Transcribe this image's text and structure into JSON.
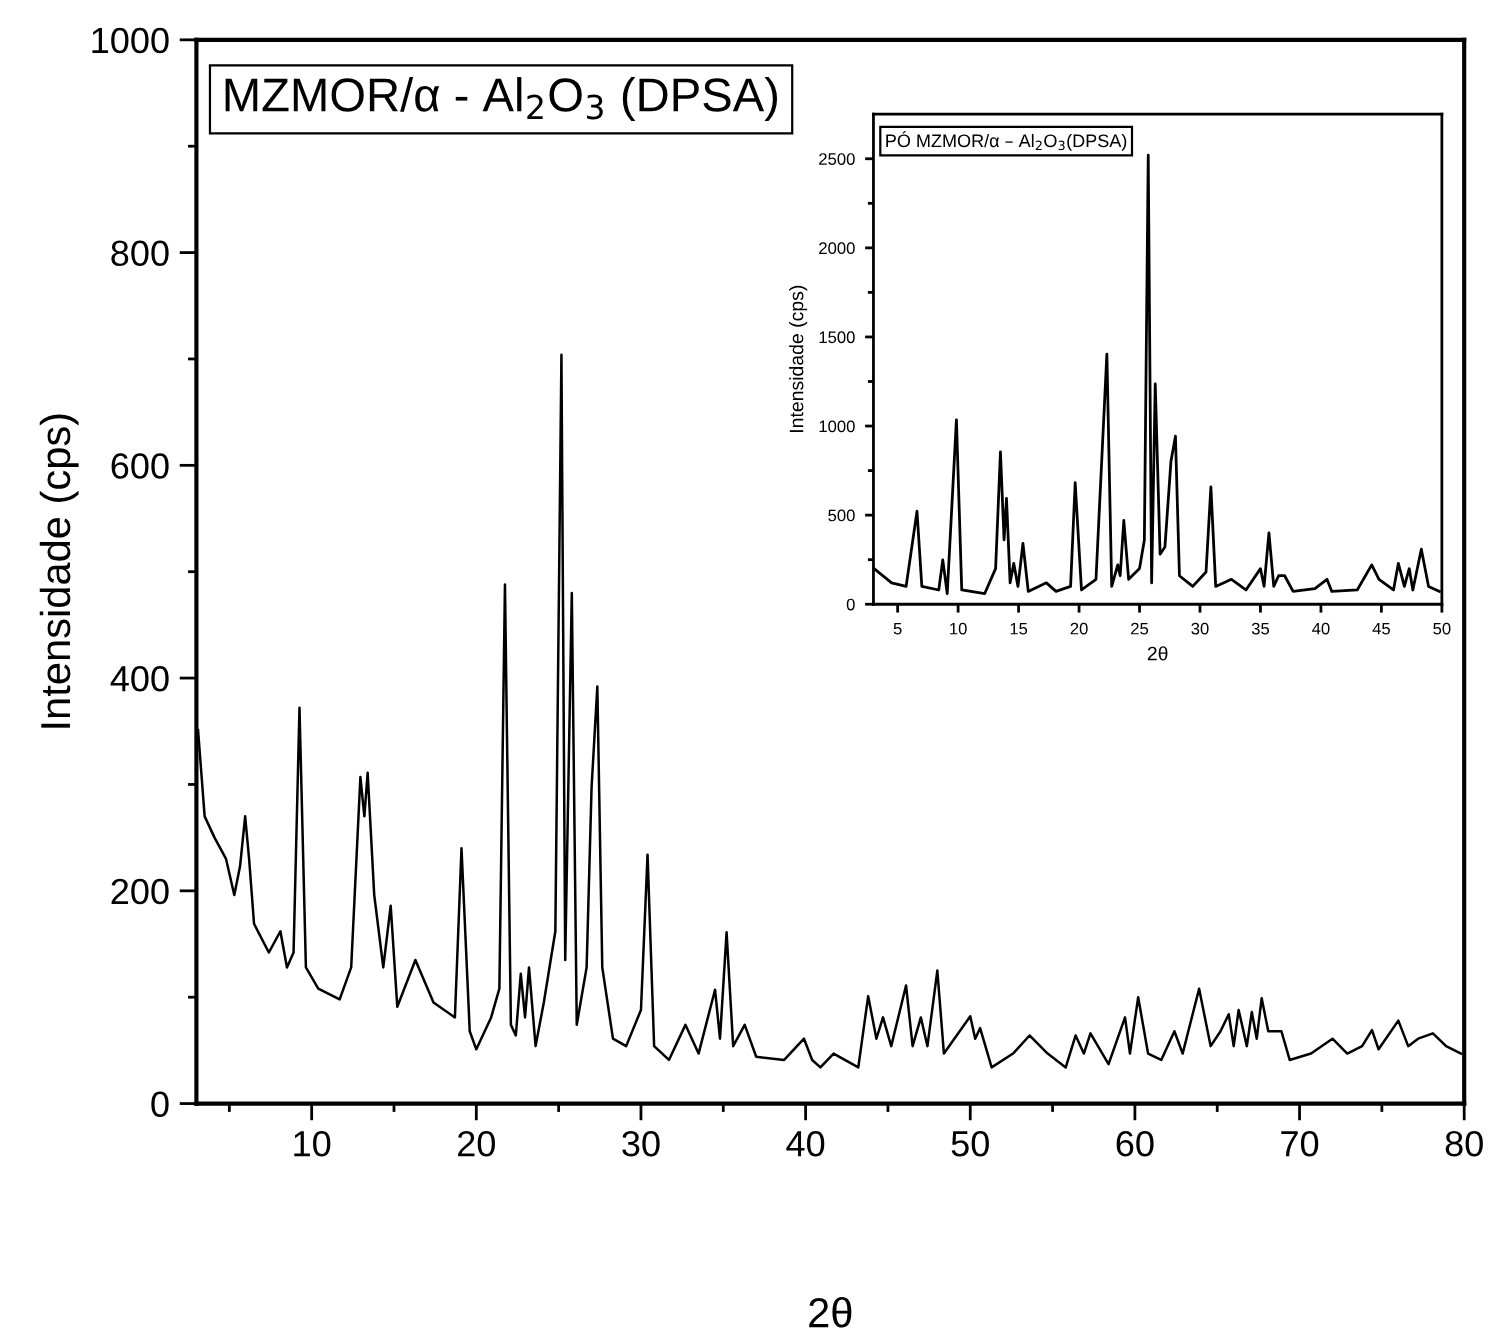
{
  "chart_data": [
    {
      "type": "line",
      "title": "MZMOR/α - Al$_{2}$O$_{3}$ (DPSA)",
      "xlabel": "2θ",
      "ylabel": "Intensidade (cps)",
      "xlim": [
        3,
        80
      ],
      "ylim": [
        0,
        1000
      ],
      "xticks": [
        {
          "value": 5,
          "label": null
        },
        10,
        {
          "value": 15,
          "label": null
        },
        20,
        {
          "value": 25,
          "label": null
        },
        30,
        {
          "value": 35,
          "label": null
        },
        40,
        {
          "value": 45,
          "label": null
        },
        50,
        {
          "value": 55,
          "label": null
        },
        60,
        {
          "value": 65,
          "label": null
        },
        70,
        {
          "value": 75,
          "label": null
        },
        80
      ],
      "yticks": [
        0,
        {
          "value": 100,
          "label": null
        },
        200,
        {
          "value": 300,
          "label": null
        },
        400,
        {
          "value": 500,
          "label": null
        },
        600,
        {
          "value": 700,
          "label": null
        },
        800,
        {
          "value": 900,
          "label": null
        },
        1000
      ],
      "grid": false,
      "legend": false,
      "marker": "none",
      "line_style": "solid",
      "series": [
        {
          "color": "#000000",
          "x": [
            3.1,
            3.5,
            4.1,
            4.8,
            5.3,
            5.65,
            5.96,
            6.2,
            6.5,
            7.4,
            8.1,
            8.5,
            8.9,
            9.26,
            9.65,
            10.4,
            11.7,
            12.4,
            12.96,
            13.2,
            13.4,
            13.8,
            14.35,
            14.8,
            15.2,
            16.3,
            17.4,
            18.7,
            19.1,
            19.6,
            20.0,
            20.9,
            21.4,
            21.74,
            22.1,
            22.4,
            22.7,
            22.96,
            23.2,
            23.6,
            24.1,
            24.8,
            25.17,
            25.4,
            25.8,
            26.1,
            26.7,
            27.0,
            27.35,
            27.65,
            28.3,
            29.1,
            30.0,
            30.4,
            30.8,
            31.7,
            32.7,
            33.5,
            34.5,
            34.8,
            35.2,
            35.6,
            36.3,
            37.0,
            38.7,
            39.9,
            40.4,
            40.9,
            41.7,
            43.2,
            43.8,
            44.3,
            44.7,
            45.2,
            46.1,
            46.5,
            47.0,
            47.4,
            48.0,
            48.4,
            50.0,
            50.3,
            50.6,
            51.3,
            52.6,
            53.6,
            54.7,
            55.8,
            56.4,
            56.9,
            57.3,
            58.4,
            59.4,
            59.7,
            60.2,
            60.8,
            61.6,
            62.4,
            62.9,
            63.9,
            64.6,
            65.2,
            65.7,
            66.0,
            66.3,
            66.8,
            67.1,
            67.4,
            67.7,
            68.1,
            68.9,
            69.4,
            70.7,
            72.0,
            72.9,
            73.8,
            74.4,
            74.8,
            76.0,
            76.6,
            77.2,
            78.1,
            78.9,
            79.8
          ],
          "values": [
            351,
            270,
            250,
            230,
            196,
            223,
            270,
            230,
            169,
            142,
            162,
            128,
            142,
            372,
            128,
            108,
            98,
            128,
            307,
            270,
            311,
            196,
            128,
            186,
            91,
            135,
            95,
            81,
            240,
            68,
            51,
            81,
            108,
            488,
            74,
            64,
            122,
            81,
            128,
            54,
            95,
            162,
            704,
            135,
            480,
            74,
            128,
            297,
            392,
            128,
            61,
            54,
            88,
            234,
            54,
            41,
            74,
            47,
            107,
            61,
            161,
            54,
            74,
            44,
            41,
            61,
            41,
            34,
            47,
            34,
            101,
            61,
            81,
            54,
            111,
            54,
            81,
            54,
            125,
            47,
            82,
            61,
            71,
            34,
            47,
            64,
            47,
            34,
            64,
            47,
            66,
            37,
            81,
            47,
            100,
            47,
            41,
            68,
            47,
            108,
            54,
            68,
            84,
            54,
            88,
            54,
            86,
            61,
            99,
            68,
            68,
            41,
            47,
            61,
            47,
            54,
            69,
            51,
            78,
            54,
            61,
            66,
            54,
            47
          ]
        }
      ]
    },
    {
      "type": "line",
      "title": "PÓ MZMOR/α – Al$_{2}$O$_{3}$(DPSA)",
      "xlabel": "2θ",
      "ylabel": "Intensidade (cps)",
      "xlim": [
        3,
        50
      ],
      "ylim": [
        0,
        2750
      ],
      "xticks": [
        5,
        10,
        15,
        20,
        25,
        30,
        35,
        40,
        45,
        50
      ],
      "yticks": [
        0,
        {
          "value": 250,
          "label": null
        },
        500,
        {
          "value": 750,
          "label": null
        },
        1000,
        {
          "value": 1250,
          "label": null
        },
        1500,
        {
          "value": 1750,
          "label": null
        },
        2000,
        {
          "value": 2250,
          "label": null
        },
        2500
      ],
      "grid": false,
      "legend": false,
      "marker": "none",
      "line_style": "solid",
      "series": [
        {
          "color": "#000000",
          "x": [
            3.05,
            4.5,
            5.7,
            6.6,
            7.0,
            8.4,
            8.73,
            9.1,
            9.86,
            10.3,
            12.2,
            13.1,
            13.5,
            13.8,
            14.0,
            14.3,
            14.6,
            14.95,
            15.36,
            15.8,
            17.3,
            18.1,
            19.3,
            19.68,
            20.2,
            21.4,
            22.3,
            22.7,
            23.2,
            23.4,
            23.7,
            24.1,
            25.0,
            25.4,
            25.72,
            26.0,
            26.3,
            26.7,
            27.1,
            27.6,
            27.97,
            28.3,
            29.4,
            30.5,
            30.9,
            31.3,
            32.6,
            33.8,
            35.0,
            35.3,
            35.7,
            36.1,
            36.5,
            37.0,
            37.7,
            39.5,
            40.5,
            40.9,
            43.0,
            44.2,
            44.8,
            46.0,
            46.4,
            46.9,
            47.3,
            47.6,
            48.3,
            48.9,
            49.8
          ],
          "values": [
            200,
            120,
            100,
            522,
            100,
            80,
            249,
            60,
            1035,
            80,
            60,
            200,
            855,
            361,
            594,
            120,
            229,
            100,
            341,
            72,
            120,
            72,
            100,
            682,
            80,
            140,
            1404,
            100,
            221,
            160,
            470,
            140,
            200,
            361,
            2520,
            120,
            1236,
            281,
            321,
            803,
            943,
            160,
            100,
            181,
            658,
            100,
            140,
            80,
            200,
            100,
            401,
            100,
            160,
            160,
            72,
            88,
            140,
            72,
            80,
            221,
            140,
            80,
            229,
            100,
            200,
            80,
            309,
            100,
            72
          ]
        }
      ]
    }
  ]
}
